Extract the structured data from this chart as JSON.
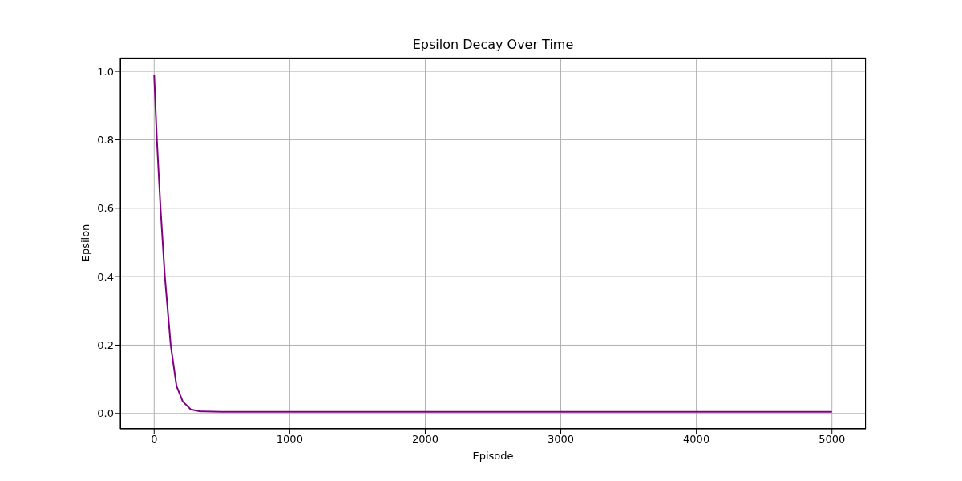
{
  "chart_data": {
    "type": "line",
    "title": "Epsilon Decay Over Time",
    "xlabel": "Episode",
    "ylabel": "Epsilon",
    "x": [
      0,
      20,
      47,
      79,
      122,
      165,
      211,
      270,
      340,
      500,
      5000
    ],
    "series": [
      {
        "color": "#800080",
        "values": [
          0.99,
          0.8,
          0.6,
          0.4,
          0.2,
          0.08,
          0.035,
          0.012,
          0.006,
          0.005,
          0.005
        ]
      }
    ],
    "xlim": [
      -250,
      5250
    ],
    "xticks": [
      0,
      1000,
      2000,
      3000,
      4000,
      5000
    ],
    "ylim": [
      -0.045,
      1.04
    ],
    "yticks": [
      {
        "value": 0,
        "label": "0.0"
      },
      {
        "value": 0.2,
        "label": "0.2"
      },
      {
        "value": 0.4,
        "label": "0.4"
      },
      {
        "value": 0.6,
        "label": "0.6"
      },
      {
        "value": 0.8,
        "label": "0.8"
      },
      {
        "value": 1,
        "label": "1.0"
      }
    ],
    "grid": true,
    "legend": false,
    "marker": "none",
    "line_style": "solid"
  }
}
